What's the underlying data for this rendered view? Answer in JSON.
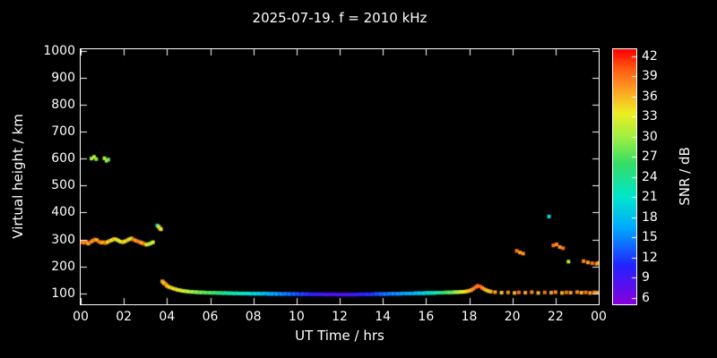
{
  "chart_data": {
    "type": "scatter",
    "title": "2025-07-19. f = 2010 kHz",
    "xlabel": "UT Time / hrs",
    "ylabel": "Virtual height / km",
    "colorbar_label": "SNR / dB",
    "background": "#000000",
    "frame_color": "#ffffff",
    "text_color": "#ffffff",
    "grid": false,
    "xlim": [
      0,
      24
    ],
    "ylim": [
      60,
      1005
    ],
    "point_size": 4,
    "xticks": {
      "values": [
        0,
        2,
        4,
        6,
        8,
        10,
        12,
        14,
        16,
        18,
        20,
        22,
        24
      ],
      "labels": [
        "00",
        "02",
        "04",
        "06",
        "08",
        "10",
        "12",
        "14",
        "16",
        "18",
        "20",
        "22",
        "00"
      ]
    },
    "yticks": [
      100,
      200,
      300,
      400,
      500,
      600,
      700,
      800,
      900,
      1000
    ],
    "colorbar": {
      "min": 5,
      "max": 43,
      "ticks": [
        6,
        9,
        12,
        15,
        18,
        21,
        24,
        27,
        30,
        33,
        36,
        39,
        42
      ]
    },
    "colormap_stops": [
      {
        "t": 0.0,
        "c": "#8800dd"
      },
      {
        "t": 0.15,
        "c": "#2222ff"
      },
      {
        "t": 0.3,
        "c": "#00aaff"
      },
      {
        "t": 0.42,
        "c": "#00e6cc"
      },
      {
        "t": 0.55,
        "c": "#33dd66"
      },
      {
        "t": 0.65,
        "c": "#99ee44"
      },
      {
        "t": 0.75,
        "c": "#eeee22"
      },
      {
        "t": 0.85,
        "c": "#ff9922"
      },
      {
        "t": 0.93,
        "c": "#ff5511"
      },
      {
        "t": 1.0,
        "c": "#ff0000"
      }
    ],
    "points": [
      [
        0.05,
        290,
        39
      ],
      [
        0.15,
        288,
        38
      ],
      [
        0.25,
        292,
        39
      ],
      [
        0.35,
        285,
        36
      ],
      [
        0.45,
        290,
        39
      ],
      [
        0.55,
        295,
        37
      ],
      [
        0.65,
        300,
        39
      ],
      [
        0.75,
        298,
        36
      ],
      [
        0.85,
        292,
        39
      ],
      [
        0.95,
        288,
        38
      ],
      [
        1.05,
        290,
        36
      ],
      [
        1.15,
        287,
        39
      ],
      [
        1.25,
        291,
        34
      ],
      [
        1.35,
        295,
        36
      ],
      [
        1.45,
        298,
        33
      ],
      [
        1.55,
        302,
        36
      ],
      [
        1.65,
        300,
        34
      ],
      [
        1.75,
        296,
        31
      ],
      [
        1.85,
        292,
        33
      ],
      [
        1.95,
        290,
        36
      ],
      [
        2.05,
        293,
        33
      ],
      [
        2.15,
        297,
        36
      ],
      [
        2.25,
        301,
        34
      ],
      [
        2.35,
        304,
        32
      ],
      [
        2.45,
        300,
        39
      ],
      [
        2.55,
        296,
        37
      ],
      [
        2.65,
        293,
        39
      ],
      [
        2.75,
        290,
        38
      ],
      [
        2.85,
        287,
        36
      ],
      [
        2.95,
        284,
        39
      ],
      [
        3.05,
        281,
        34
      ],
      [
        3.15,
        283,
        31
      ],
      [
        3.25,
        286,
        30
      ],
      [
        3.35,
        290,
        33
      ],
      [
        0.5,
        600,
        30
      ],
      [
        0.62,
        606,
        32
      ],
      [
        0.72,
        598,
        29
      ],
      [
        1.1,
        601,
        31
      ],
      [
        1.2,
        592,
        30
      ],
      [
        1.28,
        596,
        28
      ],
      [
        3.55,
        352,
        20
      ],
      [
        3.62,
        347,
        33
      ],
      [
        3.68,
        341,
        36
      ],
      [
        3.72,
        338,
        34
      ],
      [
        3.78,
        145,
        36
      ],
      [
        3.82,
        142,
        38
      ],
      [
        3.87,
        138,
        34
      ],
      [
        3.92,
        135,
        37
      ],
      [
        3.97,
        132,
        39
      ],
      [
        4.0,
        128,
        36
      ],
      [
        4.1,
        124,
        34
      ],
      [
        4.2,
        121,
        36
      ],
      [
        4.3,
        118,
        33
      ],
      [
        4.4,
        116,
        35
      ],
      [
        4.5,
        113,
        32
      ],
      [
        4.6,
        112,
        34
      ],
      [
        4.7,
        110,
        31
      ],
      [
        4.8,
        109,
        33
      ],
      [
        4.9,
        108,
        30
      ],
      [
        5.0,
        107,
        32
      ],
      [
        5.1,
        106,
        29
      ],
      [
        5.2,
        106,
        31
      ],
      [
        5.3,
        105,
        28
      ],
      [
        5.4,
        105,
        30
      ],
      [
        5.5,
        104,
        27
      ],
      [
        5.6,
        104,
        29
      ],
      [
        5.7,
        104,
        27
      ],
      [
        5.8,
        103,
        28
      ],
      [
        5.9,
        103,
        26
      ],
      [
        6.0,
        103,
        28
      ],
      [
        6.1,
        102,
        25
      ],
      [
        6.2,
        103,
        27
      ],
      [
        6.3,
        102,
        24
      ],
      [
        6.4,
        102,
        26
      ],
      [
        6.5,
        102,
        24
      ],
      [
        6.6,
        101,
        25
      ],
      [
        6.7,
        102,
        23
      ],
      [
        6.8,
        101,
        24
      ],
      [
        6.9,
        101,
        22
      ],
      [
        7.0,
        101,
        24
      ],
      [
        7.1,
        100,
        22
      ],
      [
        7.2,
        101,
        23
      ],
      [
        7.3,
        100,
        21
      ],
      [
        7.4,
        100,
        23
      ],
      [
        7.5,
        100,
        21
      ],
      [
        7.6,
        100,
        22
      ],
      [
        7.7,
        100,
        20
      ],
      [
        7.8,
        100,
        21
      ],
      [
        7.9,
        99,
        20
      ],
      [
        8.0,
        100,
        19
      ],
      [
        8.1,
        99,
        21
      ],
      [
        8.2,
        100,
        18
      ],
      [
        8.3,
        99,
        20
      ],
      [
        8.4,
        99,
        17
      ],
      [
        8.5,
        100,
        19
      ],
      [
        8.6,
        99,
        16
      ],
      [
        8.7,
        99,
        18
      ],
      [
        8.8,
        98,
        16
      ],
      [
        8.9,
        99,
        17
      ],
      [
        9.0,
        99,
        15
      ],
      [
        9.1,
        98,
        17
      ],
      [
        9.2,
        99,
        14
      ],
      [
        9.3,
        98,
        16
      ],
      [
        9.4,
        98,
        14
      ],
      [
        9.5,
        99,
        15
      ],
      [
        9.6,
        98,
        13
      ],
      [
        9.7,
        98,
        15
      ],
      [
        9.8,
        98,
        12
      ],
      [
        9.9,
        98,
        14
      ],
      [
        10.0,
        98,
        12
      ],
      [
        10.1,
        98,
        13
      ],
      [
        10.2,
        97,
        11
      ],
      [
        10.3,
        98,
        13
      ],
      [
        10.4,
        97,
        10
      ],
      [
        10.5,
        98,
        12
      ],
      [
        10.6,
        97,
        10
      ],
      [
        10.7,
        97,
        11
      ],
      [
        10.8,
        97,
        9
      ],
      [
        10.9,
        97,
        11
      ],
      [
        11.0,
        97,
        9
      ],
      [
        11.1,
        97,
        10
      ],
      [
        11.2,
        97,
        8
      ],
      [
        11.3,
        97,
        10
      ],
      [
        11.4,
        96,
        8
      ],
      [
        11.5,
        97,
        9
      ],
      [
        11.6,
        96,
        8
      ],
      [
        11.7,
        97,
        9
      ],
      [
        11.8,
        96,
        7
      ],
      [
        11.9,
        96,
        9
      ],
      [
        12.0,
        96,
        8
      ],
      [
        12.1,
        96,
        9
      ],
      [
        12.2,
        96,
        7
      ],
      [
        12.3,
        96,
        9
      ],
      [
        12.4,
        96,
        8
      ],
      [
        12.5,
        96,
        10
      ],
      [
        12.6,
        96,
        8
      ],
      [
        12.7,
        96,
        10
      ],
      [
        12.8,
        96,
        9
      ],
      [
        12.9,
        97,
        11
      ],
      [
        13.0,
        97,
        9
      ],
      [
        13.1,
        97,
        11
      ],
      [
        13.2,
        97,
        10
      ],
      [
        13.3,
        97,
        12
      ],
      [
        13.4,
        97,
        10
      ],
      [
        13.5,
        97,
        12
      ],
      [
        13.6,
        98,
        11
      ],
      [
        13.7,
        98,
        13
      ],
      [
        13.8,
        98,
        12
      ],
      [
        13.9,
        98,
        14
      ],
      [
        14.0,
        98,
        13
      ],
      [
        14.1,
        98,
        15
      ],
      [
        14.2,
        98,
        13
      ],
      [
        14.3,
        99,
        15
      ],
      [
        14.4,
        99,
        14
      ],
      [
        14.5,
        99,
        16
      ],
      [
        14.6,
        99,
        14
      ],
      [
        14.7,
        99,
        16
      ],
      [
        14.8,
        99,
        15
      ],
      [
        14.9,
        100,
        17
      ],
      [
        15.0,
        100,
        15
      ],
      [
        15.1,
        100,
        17
      ],
      [
        15.2,
        100,
        16
      ],
      [
        15.3,
        100,
        18
      ],
      [
        15.4,
        100,
        16
      ],
      [
        15.5,
        101,
        18
      ],
      [
        15.6,
        101,
        17
      ],
      [
        15.7,
        101,
        19
      ],
      [
        15.8,
        101,
        18
      ],
      [
        15.9,
        101,
        20
      ],
      [
        16.0,
        102,
        19
      ],
      [
        16.1,
        102,
        21
      ],
      [
        16.2,
        102,
        20
      ],
      [
        16.3,
        102,
        22
      ],
      [
        16.4,
        102,
        21
      ],
      [
        16.5,
        103,
        23
      ],
      [
        16.6,
        103,
        22
      ],
      [
        16.7,
        103,
        24
      ],
      [
        16.8,
        103,
        25
      ],
      [
        16.9,
        104,
        26
      ],
      [
        17.0,
        104,
        27
      ],
      [
        17.1,
        104,
        28
      ],
      [
        17.2,
        104,
        27
      ],
      [
        17.3,
        105,
        29
      ],
      [
        17.4,
        105,
        30
      ],
      [
        17.5,
        105,
        31
      ],
      [
        17.6,
        106,
        32
      ],
      [
        17.7,
        106,
        33
      ],
      [
        17.8,
        107,
        34
      ],
      [
        17.9,
        108,
        35
      ],
      [
        18.0,
        110,
        36
      ],
      [
        18.1,
        113,
        37
      ],
      [
        18.2,
        118,
        38
      ],
      [
        18.3,
        124,
        39
      ],
      [
        18.4,
        128,
        38
      ],
      [
        18.5,
        126,
        40
      ],
      [
        18.6,
        121,
        38
      ],
      [
        18.7,
        116,
        37
      ],
      [
        18.8,
        112,
        36
      ],
      [
        18.9,
        109,
        35
      ],
      [
        19.0,
        107,
        36
      ],
      [
        19.2,
        105,
        37
      ],
      [
        19.5,
        103,
        35
      ],
      [
        19.8,
        104,
        38
      ],
      [
        20.1,
        102,
        36
      ],
      [
        20.3,
        104,
        39
      ],
      [
        20.6,
        103,
        37
      ],
      [
        20.9,
        105,
        38
      ],
      [
        21.2,
        102,
        36
      ],
      [
        21.5,
        104,
        39
      ],
      [
        21.8,
        103,
        37
      ],
      [
        22.0,
        105,
        38
      ],
      [
        22.3,
        102,
        36
      ],
      [
        22.5,
        104,
        39
      ],
      [
        22.7,
        103,
        37
      ],
      [
        23.0,
        105,
        38
      ],
      [
        23.2,
        103,
        36
      ],
      [
        23.4,
        104,
        39
      ],
      [
        23.6,
        102,
        37
      ],
      [
        23.8,
        104,
        38
      ],
      [
        23.95,
        103,
        37
      ],
      [
        20.2,
        258,
        39
      ],
      [
        20.35,
        252,
        37
      ],
      [
        20.5,
        248,
        38
      ],
      [
        21.7,
        385,
        20
      ],
      [
        21.9,
        278,
        39
      ],
      [
        22.05,
        282,
        38
      ],
      [
        22.2,
        272,
        37
      ],
      [
        22.35,
        268,
        39
      ],
      [
        22.6,
        218,
        31
      ],
      [
        23.3,
        220,
        38
      ],
      [
        23.5,
        215,
        37
      ],
      [
        23.7,
        212,
        39
      ],
      [
        23.9,
        210,
        38
      ],
      [
        23.98,
        213,
        37
      ]
    ]
  }
}
